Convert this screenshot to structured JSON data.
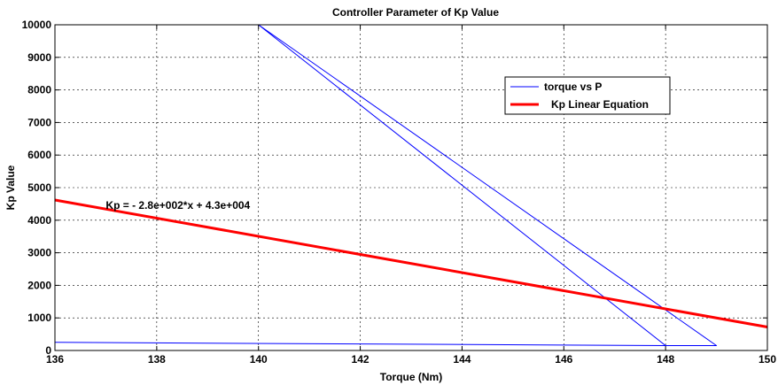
{
  "chart_data": {
    "type": "line",
    "title": "Controller Parameter of Kp Value",
    "xlabel": "Torque (Nm)",
    "ylabel": "Kp Value",
    "xlim": [
      136,
      150
    ],
    "ylim": [
      0,
      10000
    ],
    "xticks": [
      136,
      138,
      140,
      142,
      144,
      146,
      148,
      150
    ],
    "yticks": [
      0,
      1000,
      2000,
      3000,
      4000,
      5000,
      6000,
      7000,
      8000,
      9000,
      10000
    ],
    "grid": true,
    "legend_position": "top-right",
    "series": [
      {
        "name": "torque vs P",
        "color": "#0000ff",
        "x": [
          136,
          148,
          140,
          149,
          148
        ],
        "y": [
          250,
          150,
          10000,
          150,
          150
        ]
      },
      {
        "name": "Kp Linear Equation",
        "color": "#ff0000",
        "x": [
          136,
          150
        ],
        "y": [
          4620,
          720
        ]
      }
    ],
    "annotations": [
      {
        "text": "Kp = - 2.8e+002*x + 4.3e+004",
        "x": 137,
        "y": 4350
      }
    ]
  }
}
